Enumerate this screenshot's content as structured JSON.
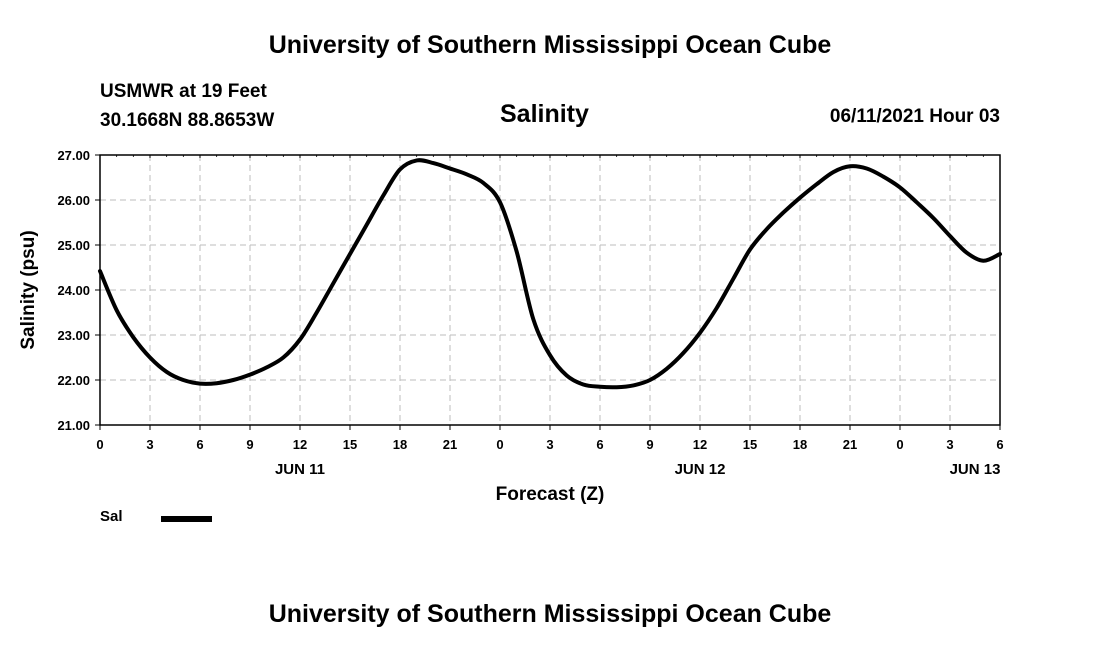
{
  "header": {
    "title": "University of Southern Mississippi Ocean Cube",
    "station_line1": "USMWR at 19 Feet",
    "station_line2": "30.1668N  88.8653W",
    "parameter": "Salinity",
    "datetime": "06/11/2021 Hour 03"
  },
  "footer": {
    "title": "University of Southern Mississippi Ocean Cube"
  },
  "legend": {
    "label": "Sal"
  },
  "chart_data": {
    "type": "line",
    "title": "Salinity",
    "xlabel": "Forecast (Z)",
    "ylabel": "Salinity (psu)",
    "xlim": [
      0,
      54
    ],
    "ylim": [
      21.0,
      27.0
    ],
    "grid": true,
    "x_tick_hours": [
      0,
      3,
      6,
      9,
      12,
      15,
      18,
      21,
      24,
      27,
      30,
      33,
      36,
      39,
      42,
      45,
      48,
      51,
      54
    ],
    "x_tick_labels": [
      "0",
      "3",
      "6",
      "9",
      "12",
      "15",
      "18",
      "21",
      "0",
      "3",
      "6",
      "9",
      "12",
      "15",
      "18",
      "21",
      "0",
      "3",
      "6"
    ],
    "day_labels": [
      {
        "hour": 12,
        "label": "JUN 11"
      },
      {
        "hour": 36,
        "label": "JUN 12"
      },
      {
        "hour": 52.5,
        "label": "JUN 13"
      }
    ],
    "y_ticks": [
      21.0,
      22.0,
      23.0,
      24.0,
      25.0,
      26.0,
      27.0
    ],
    "y_tick_labels": [
      "21.00",
      "22.00",
      "23.00",
      "24.00",
      "25.00",
      "26.00",
      "27.00"
    ],
    "series": [
      {
        "name": "Sal",
        "color": "#000000",
        "x": [
          0,
          1,
          2,
          3,
          4,
          5,
          6,
          7,
          8,
          9,
          10,
          11,
          12,
          13,
          14,
          15,
          16,
          17,
          18,
          19,
          20,
          21,
          22,
          23,
          24,
          25,
          26,
          27,
          28,
          29,
          30,
          31,
          32,
          33,
          34,
          35,
          36,
          37,
          38,
          39,
          40,
          41,
          42,
          43,
          44,
          45,
          46,
          47,
          48,
          49,
          50,
          51,
          52,
          53,
          54
        ],
        "values": [
          24.42,
          23.55,
          22.95,
          22.5,
          22.18,
          22.0,
          21.92,
          21.93,
          22.0,
          22.12,
          22.28,
          22.5,
          22.9,
          23.5,
          24.15,
          24.8,
          25.45,
          26.1,
          26.68,
          26.88,
          26.82,
          26.7,
          26.57,
          26.38,
          25.95,
          24.85,
          23.35,
          22.55,
          22.1,
          21.9,
          21.85,
          21.84,
          21.88,
          22.0,
          22.25,
          22.6,
          23.05,
          23.6,
          24.25,
          24.9,
          25.35,
          25.72,
          26.05,
          26.35,
          26.62,
          26.75,
          26.7,
          26.52,
          26.28,
          25.95,
          25.6,
          25.2,
          24.83,
          24.65,
          24.8
        ]
      }
    ]
  }
}
